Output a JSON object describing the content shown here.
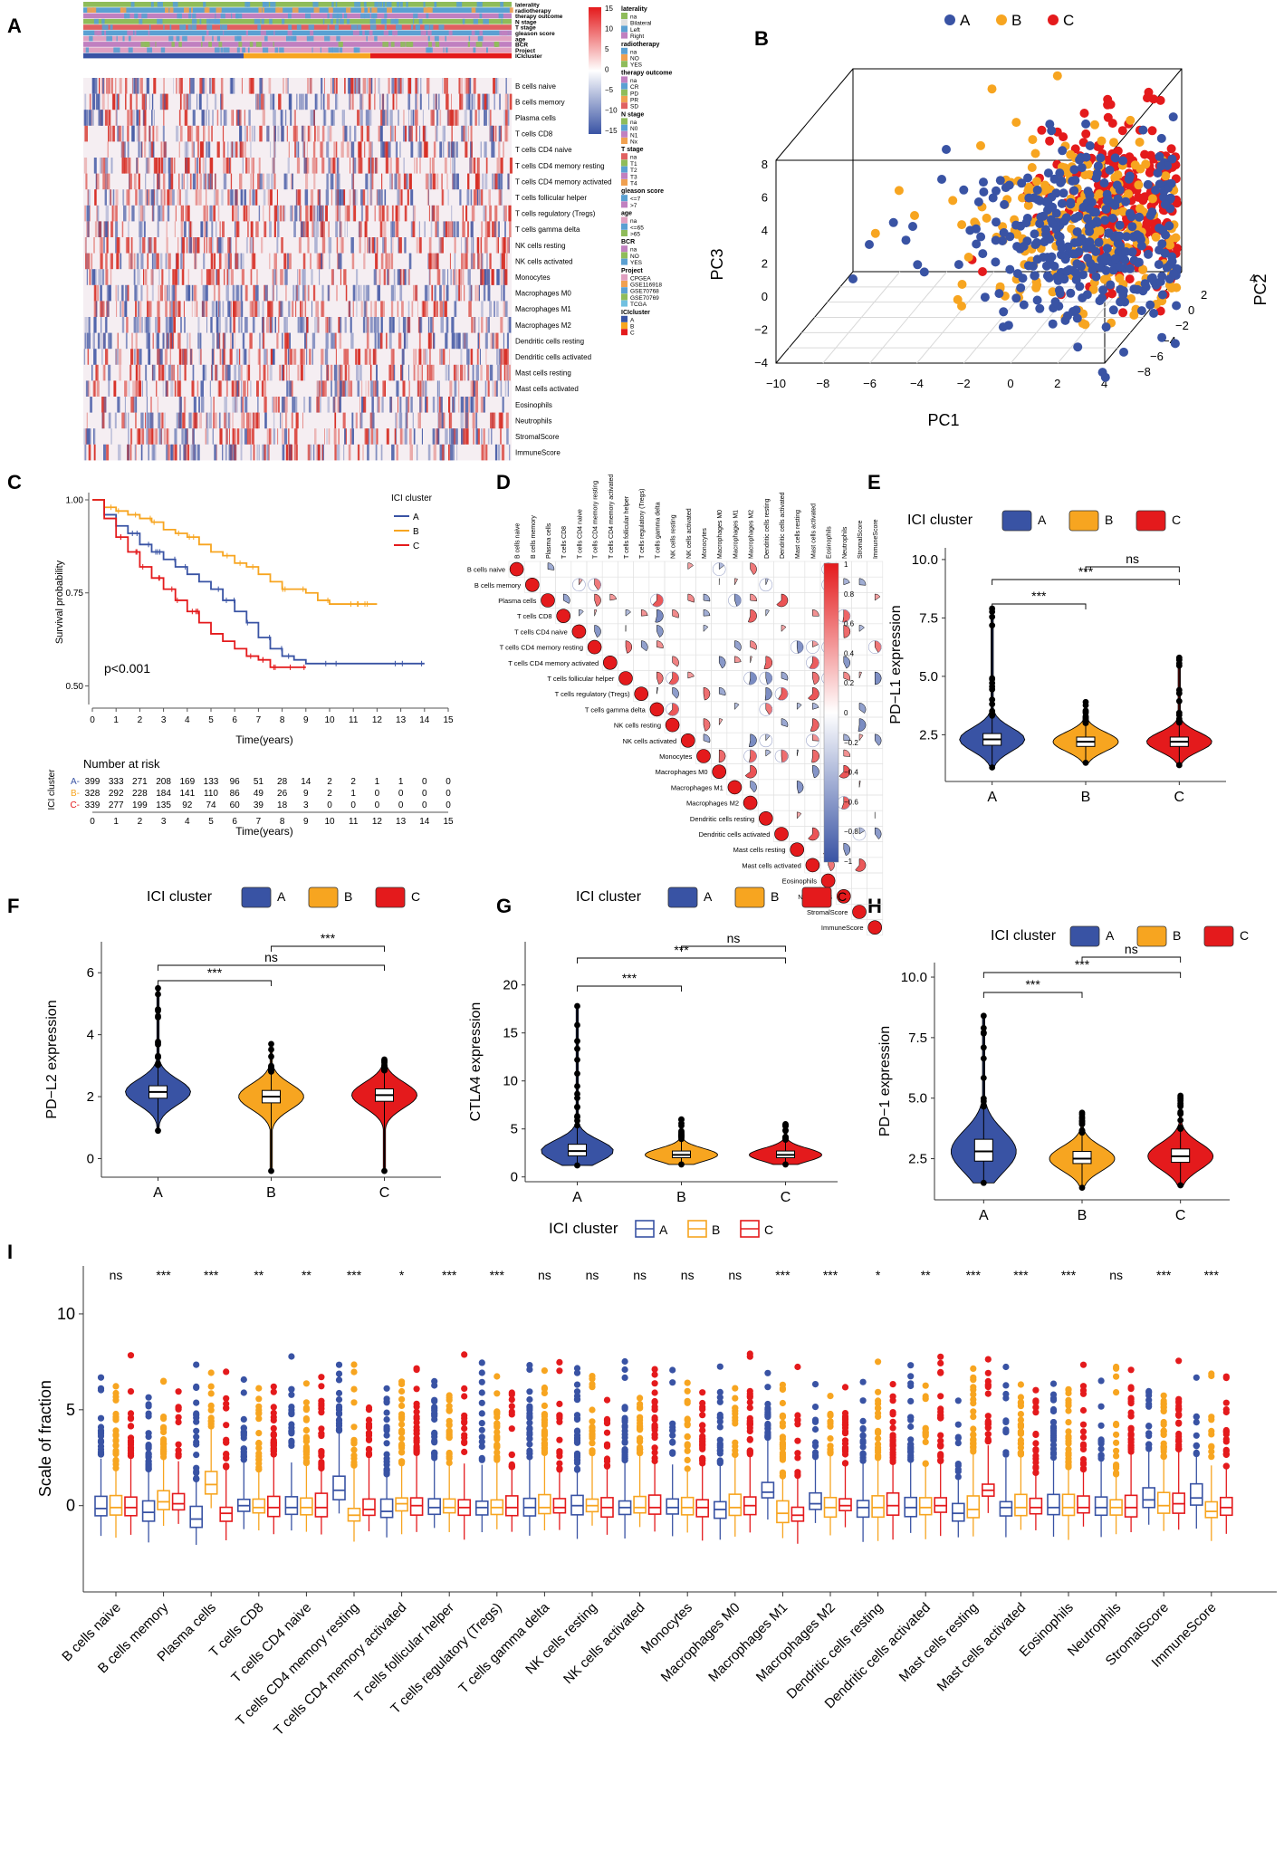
{
  "colors": {
    "A": "#3953a4",
    "B": "#f7a520",
    "C": "#e41a1c",
    "grid": "#d9d9d9"
  },
  "panel_labels": [
    "A",
    "B",
    "C",
    "D",
    "E",
    "F",
    "G",
    "H",
    "I"
  ],
  "heatmap": {
    "annotation_tracks": [
      "laterality",
      "radiotherapy",
      "therapy outcome",
      "N stage",
      "T stage",
      "gleason score",
      "age",
      "BCR",
      "Project",
      "ICIcluster"
    ],
    "rows": [
      "B cells naive",
      "B cells memory",
      "Plasma cells",
      "T cells CD8",
      "T cells CD4 naive",
      "T cells CD4 memory resting",
      "T cells CD4 memory activated",
      "T cells follicular helper",
      "T cells regulatory (Tregs)",
      "T cells gamma delta",
      "NK cells resting",
      "NK cells activated",
      "Monocytes",
      "Macrophages M0",
      "Macrophages M1",
      "Macrophages M2",
      "Dendritic cells resting",
      "Dendritic cells activated",
      "Mast cells resting",
      "Mast cells activated",
      "Eosinophils",
      "Neutrophils",
      "StromalScore",
      "ImmuneScore"
    ],
    "color_scale_ticks": [
      "15",
      "10",
      "5",
      "0",
      "−5",
      "−10",
      "−15"
    ],
    "legends": [
      {
        "title": "laterality",
        "items": [
          "na",
          "Bilateral",
          "Left",
          "Right"
        ],
        "colors": [
          "#8fbc5a",
          "#e0e0e0",
          "#5aa0d2",
          "#c080c0"
        ]
      },
      {
        "title": "radiotherapy",
        "items": [
          "na",
          "NO",
          "YES"
        ],
        "colors": [
          "#5aa0d2",
          "#f0a050",
          "#8fbc5a"
        ]
      },
      {
        "title": "therapy outcome",
        "items": [
          "na",
          "CR",
          "PD",
          "PR",
          "SD"
        ],
        "colors": [
          "#c080c0",
          "#5aa0d2",
          "#8fbc5a",
          "#f0a050",
          "#e06060"
        ]
      },
      {
        "title": "N stage",
        "items": [
          "na",
          "N0",
          "N1",
          "Nx"
        ],
        "colors": [
          "#8fbc5a",
          "#5aa0d2",
          "#c080c0",
          "#f0a050"
        ]
      },
      {
        "title": "T stage",
        "items": [
          "na",
          "T1",
          "T2",
          "T3",
          "T4"
        ],
        "colors": [
          "#e06060",
          "#8fbc5a",
          "#5aa0d2",
          "#c080c0",
          "#f0a050"
        ]
      },
      {
        "title": "gleason score",
        "items": [
          "<=7",
          ">7"
        ],
        "colors": [
          "#5aa0d2",
          "#c080c0"
        ]
      },
      {
        "title": "age",
        "items": [
          "na",
          "<=65",
          ">65"
        ],
        "colors": [
          "#e0a0c0",
          "#5aa0d2",
          "#8fbc5a"
        ]
      },
      {
        "title": "BCR",
        "items": [
          "na",
          "NO",
          "YES"
        ],
        "colors": [
          "#c080c0",
          "#8fbc5a",
          "#5aa0d2"
        ]
      },
      {
        "title": "Project",
        "items": [
          "CPGEA",
          "GSE116918",
          "GSE70768",
          "GSE70769",
          "TCGA"
        ],
        "colors": [
          "#e0a0c0",
          "#f0a050",
          "#5aa0d2",
          "#8fbc5a",
          "#70c0e0"
        ]
      },
      {
        "title": "ICIcluster",
        "items": [
          "A",
          "B",
          "C"
        ],
        "colors": [
          "#3953a4",
          "#f7a520",
          "#e41a1c"
        ]
      }
    ]
  },
  "pca3d": {
    "legend": [
      "A",
      "B",
      "C"
    ],
    "xlabel": "PC1",
    "ylabel": "PC2",
    "zlabel": "PC3",
    "x_ticks": [
      "−10",
      "−8",
      "−6",
      "−4",
      "−2",
      "0",
      "2",
      "4"
    ],
    "z_ticks": [
      "8",
      "6",
      "4",
      "2",
      "0",
      "−2",
      "−4"
    ],
    "y_ticks": [
      "2",
      "0",
      "−2",
      "−4",
      "−6",
      "−8",
      "4"
    ]
  },
  "survival": {
    "legend_title": "ICI cluster",
    "ylabel": "Survival probability",
    "xlabel": "Time(years)",
    "pvalue": "p<0.001",
    "y_ticks": [
      "0.50",
      "0.75",
      "1.00"
    ],
    "x_ticks": [
      "0",
      "1",
      "2",
      "3",
      "4",
      "5",
      "6",
      "7",
      "8",
      "9",
      "10",
      "11",
      "12",
      "13",
      "14",
      "15"
    ],
    "risk_title": "Number at risk",
    "risk_ylabel": "ICI cluster",
    "risk_table": [
      {
        "group": "A",
        "counts": [
          "399",
          "333",
          "271",
          "208",
          "169",
          "133",
          "96",
          "51",
          "28",
          "14",
          "2",
          "2",
          "1",
          "1",
          "0",
          "0"
        ]
      },
      {
        "group": "B",
        "counts": [
          "328",
          "292",
          "228",
          "184",
          "141",
          "110",
          "86",
          "49",
          "26",
          "9",
          "2",
          "1",
          "0",
          "0",
          "0",
          "0"
        ]
      },
      {
        "group": "C",
        "counts": [
          "339",
          "277",
          "199",
          "135",
          "92",
          "74",
          "60",
          "39",
          "18",
          "3",
          "0",
          "0",
          "0",
          "0",
          "0",
          "0"
        ]
      }
    ]
  },
  "corr": {
    "labels": [
      "B cells naive",
      "B cells memory",
      "Plasma cells",
      "T cells CD8",
      "T cells CD4 naive",
      "T cells CD4 memory resting",
      "T cells CD4 memory activated",
      "T cells follicular helper",
      "T cells regulatory (Tregs)",
      "T cells gamma delta",
      "NK cells resting",
      "NK cells activated",
      "Monocytes",
      "Macrophages M0",
      "Macrophages M1",
      "Macrophages M2",
      "Dendritic cells resting",
      "Dendritic cells activated",
      "Mast cells resting",
      "Mast cells activated",
      "Eosinophils",
      "Neutrophils",
      "StromalScore",
      "ImmuneScore"
    ],
    "scale_ticks": [
      "1",
      "0.8",
      "0.6",
      "0.4",
      "0.2",
      "0",
      "−0.2",
      "−0.4",
      "−0.6",
      "−0.8",
      "−1"
    ]
  },
  "chart_data": [
    {
      "id": "kaplan-meier",
      "type": "line",
      "title": "",
      "xlabel": "Time(years)",
      "ylabel": "Survival probability",
      "xlim": [
        0,
        15
      ],
      "ylim": [
        0.45,
        1.0
      ],
      "series": [
        {
          "name": "A",
          "x": [
            0,
            0.5,
            1,
            1.5,
            2,
            2.5,
            3,
            3.5,
            4,
            4.5,
            5,
            5.5,
            6,
            6.5,
            7,
            7.5,
            8,
            8.5,
            9,
            10,
            11,
            12,
            13,
            14
          ],
          "values": [
            1.0,
            0.96,
            0.93,
            0.91,
            0.88,
            0.86,
            0.84,
            0.82,
            0.8,
            0.78,
            0.76,
            0.73,
            0.7,
            0.67,
            0.63,
            0.6,
            0.58,
            0.57,
            0.56,
            0.56,
            0.56,
            0.56,
            0.56,
            0.56
          ]
        },
        {
          "name": "B",
          "x": [
            0,
            0.5,
            1,
            1.5,
            2,
            2.5,
            3,
            3.5,
            4,
            4.5,
            5,
            5.5,
            6,
            6.5,
            7,
            7.5,
            8,
            8.5,
            9,
            9.5,
            10,
            11,
            12
          ],
          "values": [
            1.0,
            0.98,
            0.97,
            0.96,
            0.95,
            0.94,
            0.92,
            0.91,
            0.9,
            0.88,
            0.86,
            0.85,
            0.83,
            0.82,
            0.8,
            0.78,
            0.76,
            0.76,
            0.75,
            0.73,
            0.72,
            0.72,
            0.72
          ]
        },
        {
          "name": "C",
          "x": [
            0,
            0.5,
            1,
            1.5,
            2,
            2.5,
            3,
            3.5,
            4,
            4.5,
            5,
            5.5,
            6,
            6.5,
            7,
            7.5,
            8,
            8.5,
            9
          ],
          "values": [
            1.0,
            0.95,
            0.9,
            0.86,
            0.82,
            0.79,
            0.76,
            0.73,
            0.7,
            0.67,
            0.64,
            0.62,
            0.6,
            0.58,
            0.57,
            0.55,
            0.55,
            0.55,
            0.55
          ]
        }
      ]
    },
    {
      "id": "pd-l1",
      "type": "violin",
      "legend_title": "ICI cluster",
      "categories": [
        "A",
        "B",
        "C"
      ],
      "ylabel": "PD−L1 expression",
      "ylim": [
        0.5,
        10.5
      ],
      "y_ticks": [
        "2.5",
        "5.0",
        "7.5",
        "10.0"
      ],
      "medians": [
        2.3,
        2.2,
        2.2
      ],
      "q1": [
        2.05,
        2.0,
        2.0
      ],
      "q3": [
        2.55,
        2.4,
        2.4
      ],
      "mins": [
        1.1,
        1.3,
        1.2
      ],
      "maxs": [
        7.9,
        3.9,
        5.8
      ],
      "comparisons": [
        {
          "pair": [
            "A",
            "B"
          ],
          "label": "***"
        },
        {
          "pair": [
            "A",
            "C"
          ],
          "label": "***"
        },
        {
          "pair": [
            "B",
            "C"
          ],
          "label": "ns"
        }
      ]
    },
    {
      "id": "pd-l2",
      "type": "violin",
      "legend_title": "ICI cluster",
      "categories": [
        "A",
        "B",
        "C"
      ],
      "ylabel": "PD−L2 expression",
      "ylim": [
        -0.6,
        7.0
      ],
      "y_ticks": [
        "0",
        "2",
        "4",
        "6"
      ],
      "medians": [
        2.15,
        2.0,
        2.05
      ],
      "q1": [
        1.95,
        1.8,
        1.85
      ],
      "q3": [
        2.35,
        2.2,
        2.25
      ],
      "mins": [
        0.9,
        -0.4,
        -0.4
      ],
      "maxs": [
        5.5,
        3.7,
        3.2
      ],
      "comparisons": [
        {
          "pair": [
            "A",
            "B"
          ],
          "label": "***"
        },
        {
          "pair": [
            "A",
            "C"
          ],
          "label": "ns"
        },
        {
          "pair": [
            "B",
            "C"
          ],
          "label": "***"
        }
      ]
    },
    {
      "id": "ctla4",
      "type": "violin",
      "legend_title": "ICI cluster",
      "categories": [
        "A",
        "B",
        "C"
      ],
      "ylabel": "CTLA4 expression",
      "ylim": [
        -0.5,
        24.5
      ],
      "y_ticks": [
        "0",
        "5",
        "10",
        "15",
        "20"
      ],
      "medians": [
        2.7,
        2.3,
        2.3
      ],
      "q1": [
        2.2,
        2.0,
        2.0
      ],
      "q3": [
        3.4,
        2.7,
        2.7
      ],
      "mins": [
        1.2,
        1.3,
        1.3
      ],
      "maxs": [
        17.8,
        6.0,
        5.5
      ],
      "comparisons": [
        {
          "pair": [
            "A",
            "B"
          ],
          "label": "***"
        },
        {
          "pair": [
            "A",
            "C"
          ],
          "label": "***"
        },
        {
          "pair": [
            "B",
            "C"
          ],
          "label": "ns"
        }
      ]
    },
    {
      "id": "pd-1",
      "type": "violin",
      "legend_title": "ICI cluster",
      "categories": [
        "A",
        "B",
        "C"
      ],
      "ylabel": "PD−1 expression",
      "ylim": [
        0.8,
        10.6
      ],
      "y_ticks": [
        "2.5",
        "5.0",
        "7.5",
        "10.0"
      ],
      "medians": [
        2.8,
        2.5,
        2.6
      ],
      "q1": [
        2.4,
        2.3,
        2.35
      ],
      "q3": [
        3.3,
        2.8,
        2.9
      ],
      "mins": [
        1.5,
        1.3,
        1.4
      ],
      "maxs": [
        8.4,
        4.4,
        5.1
      ],
      "comparisons": [
        {
          "pair": [
            "A",
            "B"
          ],
          "label": "***"
        },
        {
          "pair": [
            "A",
            "C"
          ],
          "label": "***"
        },
        {
          "pair": [
            "B",
            "C"
          ],
          "label": "ns"
        }
      ]
    },
    {
      "id": "fraction-boxplot",
      "type": "box",
      "legend_title": "ICI cluster",
      "series_names": [
        "A",
        "B",
        "C"
      ],
      "ylabel": "Scale of fraction",
      "ylim": [
        -4.5,
        12.5
      ],
      "y_ticks": [
        "0",
        "5",
        "10"
      ],
      "categories": [
        "B cells naive",
        "B cells memory",
        "Plasma cells",
        "T cells CD8",
        "T cells CD4 naive",
        "T cells CD4 memory resting",
        "T cells CD4 memory activated",
        "T cells follicular helper",
        "T cells regulatory (Tregs)",
        "T cells gamma delta",
        "NK cells resting",
        "NK cells activated",
        "Monocytes",
        "Macrophages M0",
        "Macrophages M1",
        "Macrophages M2",
        "Dendritic cells resting",
        "Dendritic cells activated",
        "Mast cells resting",
        "Mast cells activated",
        "Eosinophils",
        "Neutrophils",
        "StromalScore",
        "ImmuneScore"
      ],
      "significance": [
        "ns",
        "***",
        "***",
        "**",
        "**",
        "***",
        "*",
        "***",
        "***",
        "ns",
        "ns",
        "ns",
        "ns",
        "ns",
        "***",
        "***",
        "*",
        "**",
        "***",
        "***",
        "***",
        "ns",
        "***",
        "***"
      ],
      "medians": [
        [
          -0.15,
          -0.1,
          -0.1
        ],
        [
          -0.35,
          0.2,
          0.1
        ],
        [
          -0.7,
          1.1,
          -0.4
        ],
        [
          0.0,
          -0.1,
          -0.1
        ],
        [
          -0.1,
          -0.1,
          -0.1
        ],
        [
          0.8,
          -0.5,
          -0.2
        ],
        [
          -0.3,
          0.1,
          0.0
        ],
        [
          -0.1,
          -0.1,
          -0.1
        ],
        [
          -0.1,
          -0.1,
          -0.1
        ],
        [
          -0.1,
          -0.1,
          -0.1
        ],
        [
          0.0,
          0.0,
          -0.1
        ],
        [
          -0.1,
          -0.1,
          -0.1
        ],
        [
          -0.1,
          -0.1,
          -0.1
        ],
        [
          -0.2,
          -0.1,
          0.0
        ],
        [
          0.7,
          -0.4,
          -0.5
        ],
        [
          0.1,
          -0.1,
          0.0
        ],
        [
          -0.1,
          -0.1,
          0.0
        ],
        [
          -0.1,
          -0.1,
          0.0
        ],
        [
          -0.4,
          -0.2,
          0.8
        ],
        [
          -0.1,
          -0.1,
          -0.1
        ],
        [
          -0.1,
          -0.1,
          -0.1
        ],
        [
          -0.1,
          -0.1,
          -0.1
        ],
        [
          0.3,
          0.0,
          0.1
        ],
        [
          0.4,
          -0.3,
          -0.1
        ]
      ]
    }
  ]
}
